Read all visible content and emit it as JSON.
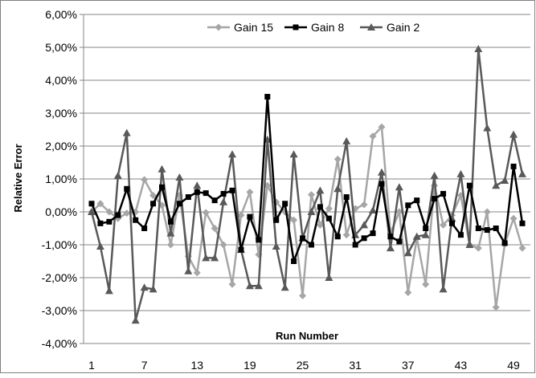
{
  "chart_data": {
    "type": "line",
    "title": "",
    "xlabel": "Run Number",
    "ylabel": "Relative Error",
    "ylim": [
      -0.04,
      0.06
    ],
    "y_ticks": [
      "6,00%",
      "5,00%",
      "4,00%",
      "3,00%",
      "2,00%",
      "1,00%",
      "0,00%",
      "-1,00%",
      "-2,00%",
      "-3,00%",
      "-4,00%"
    ],
    "x_tick_labels": [
      "1",
      "7",
      "13",
      "19",
      "25",
      "31",
      "37",
      "43",
      "49"
    ],
    "x": [
      1,
      2,
      3,
      4,
      5,
      6,
      7,
      8,
      9,
      10,
      11,
      12,
      13,
      14,
      15,
      16,
      17,
      18,
      19,
      20,
      21,
      22,
      23,
      24,
      25,
      26,
      27,
      28,
      29,
      30,
      31,
      32,
      33,
      34,
      35,
      36,
      37,
      38,
      39,
      40,
      41,
      42,
      43,
      44,
      45,
      46,
      47,
      48,
      49,
      50
    ],
    "grid": "horizontal",
    "legend_position": "top",
    "series": [
      {
        "name": "Gain 15",
        "color": "#a6a6a6",
        "marker": "diamond",
        "values": [
          0.0,
          0.0025,
          0.0,
          -0.002,
          -0.0004,
          0.0,
          0.0098,
          0.005,
          0.002,
          -0.01,
          0.005,
          -0.0135,
          -0.0185,
          -0.0002,
          -0.005,
          -0.01,
          -0.022,
          -0.001,
          0.006,
          -0.013,
          0.008,
          0.003,
          0.0,
          -0.0025,
          -0.0255,
          0.0052,
          -0.004,
          0.001,
          0.016,
          -0.007,
          0.001,
          0.0022,
          0.023,
          0.0258,
          -0.0065,
          0.0,
          -0.0245,
          -0.008,
          -0.022,
          0.008,
          -0.004,
          -0.001,
          0.005,
          -0.01,
          -0.011,
          0.0,
          -0.029,
          -0.0098,
          -0.002,
          -0.011
        ]
      },
      {
        "name": "Gain 8",
        "color": "#000000",
        "marker": "square",
        "values": [
          0.0025,
          -0.0035,
          -0.003,
          -0.001,
          0.007,
          -0.0025,
          -0.005,
          0.0025,
          0.0075,
          -0.003,
          0.0025,
          0.0045,
          0.006,
          0.0057,
          0.0035,
          0.0055,
          0.0065,
          -0.0115,
          -0.0015,
          -0.0085,
          0.035,
          -0.0025,
          0.0025,
          -0.015,
          -0.008,
          -0.01,
          0.0015,
          -0.002,
          -0.0075,
          0.0045,
          -0.01,
          -0.008,
          -0.0065,
          0.0085,
          -0.0075,
          -0.009,
          0.002,
          0.0035,
          -0.005,
          0.004,
          0.0055,
          -0.0035,
          -0.007,
          0.008,
          -0.005,
          -0.0055,
          -0.005,
          -0.0095,
          0.0138,
          -0.0035
        ]
      },
      {
        "name": "Gain 2",
        "color": "#595959",
        "marker": "triangle",
        "values": [
          0.0,
          -0.0105,
          -0.024,
          0.011,
          0.024,
          -0.033,
          -0.023,
          -0.0235,
          0.013,
          -0.0065,
          0.0105,
          -0.018,
          0.008,
          -0.014,
          -0.014,
          0.003,
          0.0175,
          -0.0115,
          -0.0225,
          -0.0225,
          0.022,
          -0.0105,
          -0.023,
          0.0175,
          -0.008,
          0.0,
          0.0065,
          -0.02,
          0.007,
          0.0215,
          -0.007,
          -0.004,
          0.0005,
          0.012,
          -0.011,
          0.0075,
          -0.0125,
          -0.0075,
          -0.007,
          0.011,
          -0.0235,
          -0.002,
          0.0115,
          -0.01,
          0.0495,
          0.0255,
          0.008,
          0.0095,
          0.0235,
          0.0115
        ]
      }
    ]
  }
}
